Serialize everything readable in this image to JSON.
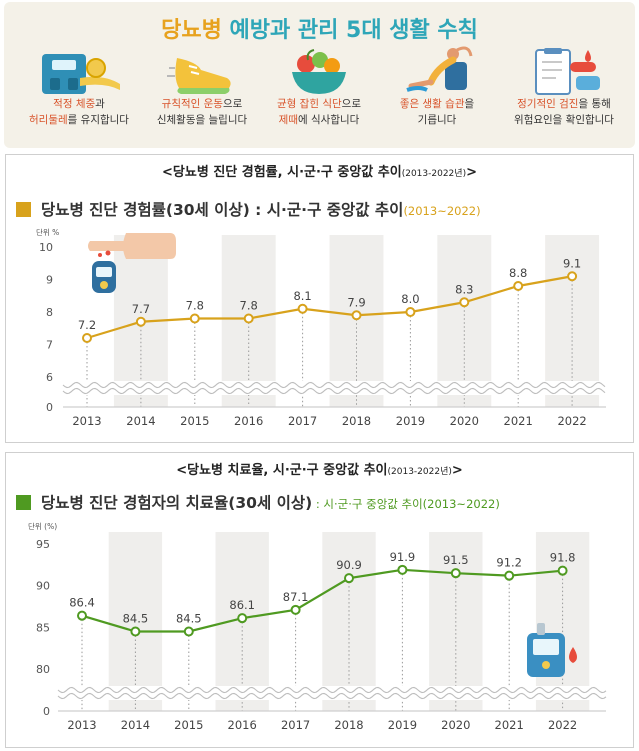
{
  "banner": {
    "title_a": "당뇨병",
    "title_b": "예방과 관리 5대 생활 수칙"
  },
  "tips": [
    {
      "icon": "scale-tape-icon",
      "line1_hl": "적정 체중",
      "line1_rest": "과",
      "line2_hl": "허리둘레",
      "line2_rest": "를 유지합니다"
    },
    {
      "icon": "running-shoe-icon",
      "line1_hl": "규칙적인 운동",
      "line1_rest": "으로",
      "line2_hl": "",
      "line2_rest": "신체활동을 늘립니다"
    },
    {
      "icon": "salad-bowl-icon",
      "line1_hl": "균형 잡힌 식단",
      "line1_rest": "으로",
      "line2_hl": "제때",
      "line2_rest": "에 식사합니다"
    },
    {
      "icon": "exercise-person-icon",
      "line1_hl": "좋은 생활 습관",
      "line1_rest": "을",
      "line2_hl": "",
      "line2_rest": "기릅니다"
    },
    {
      "icon": "medical-checkup-icon",
      "line1_hl": "정기적인 검진",
      "line1_rest": "을 통해",
      "line2_hl": "",
      "line2_rest": "위험요인을 확인합니다"
    }
  ],
  "colors": {
    "gold": "#d8a21c",
    "green": "#4f9a21",
    "orange_text": "#d8532a",
    "band": "#efeeec"
  },
  "chart_data": [
    {
      "type": "line",
      "panel_title": "<당뇨병 진단 경험률, 시·군·구 중앙값 추이",
      "panel_title_small": "(2013-2022년)",
      "panel_title_end": ">",
      "title": "당뇨병 진단 경험률(30세 이상) : 시·군·구 중앙값 추이",
      "subtitle": "(2013~2022)",
      "ylabel": "단위 %",
      "x": [
        "2013",
        "2014",
        "2015",
        "2016",
        "2017",
        "2018",
        "2019",
        "2020",
        "2021",
        "2022"
      ],
      "values": [
        7.2,
        7.7,
        7.8,
        7.8,
        8.1,
        7.9,
        8.0,
        8.3,
        8.8,
        9.1
      ],
      "value_labels": [
        "7.2",
        "7.7",
        "7.8",
        "7.8",
        "8.1",
        "7.9",
        "8.0",
        "8.3",
        "8.8",
        "9.1"
      ],
      "yticks": [
        "10",
        "9",
        "8",
        "7",
        "6",
        "0"
      ],
      "ylim": [
        6,
        10
      ],
      "axis_break": true,
      "grid": false,
      "color": "#d8a21c"
    },
    {
      "type": "line",
      "panel_title": "<당뇨병 치료율, 시·군·구 중앙값 추이",
      "panel_title_small": "(2013-2022년)",
      "panel_title_end": ">",
      "title": "당뇨병 진단 경험자의 치료율(30세 이상)",
      "subtitle": " : 시·군·구 중앙값 추이(2013~2022)",
      "ylabel": "단위 (%)",
      "x": [
        "2013",
        "2014",
        "2015",
        "2016",
        "2017",
        "2018",
        "2019",
        "2020",
        "2021",
        "2022"
      ],
      "values": [
        86.4,
        84.5,
        84.5,
        86.1,
        87.1,
        90.9,
        91.9,
        91.5,
        91.2,
        91.8
      ],
      "value_labels": [
        "86.4",
        "84.5",
        "84.5",
        "86.1",
        "87.1",
        "90.9",
        "91.9",
        "91.5",
        "91.2",
        "91.8"
      ],
      "yticks": [
        "95",
        "90",
        "85",
        "80",
        "0"
      ],
      "ylim": [
        80,
        95
      ],
      "axis_break": true,
      "grid": false,
      "color": "#4f9a21"
    }
  ]
}
